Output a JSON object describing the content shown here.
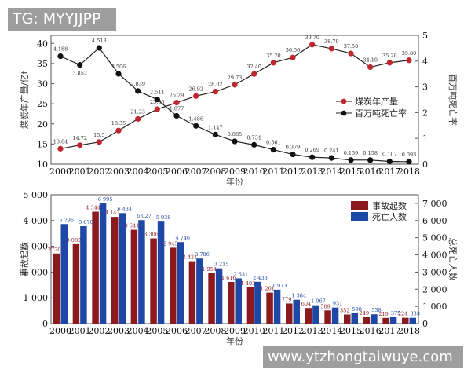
{
  "watermarks": {
    "top": "TG: MYYJJPP",
    "bottom": "www.ytzhongtaiwuye.com"
  },
  "chart_data": [
    {
      "type": "line",
      "xlabel": "年份",
      "ylabel": "煤炭年产量/亿t",
      "y2label": "百万吨死亡率",
      "ylim": [
        10,
        42
      ],
      "y2lim": [
        0,
        5
      ],
      "yticks": [
        10,
        15,
        20,
        25,
        30,
        35,
        40
      ],
      "y2ticks": [
        0,
        1,
        2,
        3,
        4,
        5
      ],
      "legend_position": "right",
      "x": [
        "2000",
        "2001",
        "2002",
        "2003",
        "2004",
        "2005",
        "2006",
        "2007",
        "2008",
        "2009",
        "2010",
        "2011",
        "2012",
        "2013",
        "2014",
        "2015",
        "2016",
        "2017",
        "2018"
      ],
      "series": [
        {
          "name": "煤炭年产量",
          "axis": "left",
          "color": "#c0272d",
          "values": [
            13.84,
            14.72,
            15.5,
            18.35,
            21.23,
            23.65,
            25.29,
            26.92,
            28.02,
            29.73,
            32.4,
            35.2,
            36.5,
            39.7,
            38.7,
            37.5,
            34.1,
            35.2,
            35.8
          ],
          "labels": [
            "13.84",
            "14.72",
            "15.5",
            "18.35",
            "21.23",
            "23.65",
            "25.29",
            "26.92",
            "28.02",
            "29.73",
            "32.40",
            "35.20",
            "36.50",
            "39.70",
            "38.70",
            "37.50",
            "34.10",
            "35.20",
            "35.80"
          ]
        },
        {
          "name": "百万吨死亡率",
          "axis": "right",
          "color": "#111111",
          "values": [
            4.188,
            3.852,
            4.513,
            3.506,
            2.839,
            2.511,
            1.877,
            1.486,
            1.147,
            0.885,
            0.751,
            0.561,
            0.379,
            0.269,
            0.241,
            0.159,
            0.158,
            0.107,
            0.093
          ],
          "labels": [
            "4.188",
            "3.852",
            "4.513",
            "3.506",
            "2.839",
            "2.511",
            "1.877",
            "1.486",
            "1.147",
            "0.885",
            "0.751",
            "0.561",
            "0.379",
            "0.269",
            "0.241",
            "0.159",
            "0.158",
            "0.107",
            "0.093"
          ]
        }
      ]
    },
    {
      "type": "bar",
      "xlabel": "年份",
      "ylabel": "事故起数",
      "y2label": "总死亡人数",
      "ylim": [
        0,
        5000
      ],
      "y2lim": [
        0,
        7500
      ],
      "yticks": [
        0,
        1000,
        2000,
        3000,
        4000,
        5000
      ],
      "yticklabels": [
        "0",
        "1 000",
        "2 000",
        "3 000",
        "4 000",
        "5 000"
      ],
      "y2ticks": [
        0,
        1000,
        2000,
        3000,
        4000,
        5000,
        6000,
        7000
      ],
      "y2ticklabels": [
        "0",
        "1 000",
        "2 000",
        "3 000",
        "4 000",
        "5 000",
        "6 000",
        "7 000"
      ],
      "legend_position": "top-right",
      "categories": [
        "2000",
        "2001",
        "2002",
        "2003",
        "2004",
        "2005",
        "2006",
        "2007",
        "2008",
        "2009",
        "2010",
        "2011",
        "2012",
        "2013",
        "2014",
        "2015",
        "2016",
        "2017",
        "2018"
      ],
      "series": [
        {
          "name": "事故起数",
          "axis": "left",
          "color": "#8b1a1f",
          "values": [
            2720,
            3082,
            4344,
            4143,
            3641,
            3306,
            2945,
            2421,
            1954,
            1616,
            1403,
            1201,
            779,
            604,
            509,
            352,
            249,
            219,
            224
          ],
          "labels": [
            "2720",
            "3 082",
            "4 344",
            "4 143",
            "3 641",
            "3 306",
            "2 945",
            "2 421",
            "1 954",
            "1 616",
            "1 403",
            "1 201",
            "779",
            "604",
            "509",
            "352",
            "249",
            "219",
            "224"
          ]
        },
        {
          "name": "死亡人数",
          "axis": "right",
          "color": "#1f47a5",
          "values": [
            5796,
            5670,
            6995,
            6434,
            6027,
            5938,
            4746,
            3786,
            3215,
            2631,
            2433,
            1973,
            1384,
            1067,
            931,
            598,
            538,
            375,
            333
          ],
          "labels": [
            "5 796",
            "5 670",
            "6 995",
            "6 434",
            "6 027",
            "5 938",
            "4 746",
            "3 786",
            "3 215",
            "2 631",
            "2 433",
            "1 973",
            "1 384",
            "1 067",
            "931",
            "598",
            "538",
            "375",
            "333"
          ]
        }
      ]
    }
  ]
}
